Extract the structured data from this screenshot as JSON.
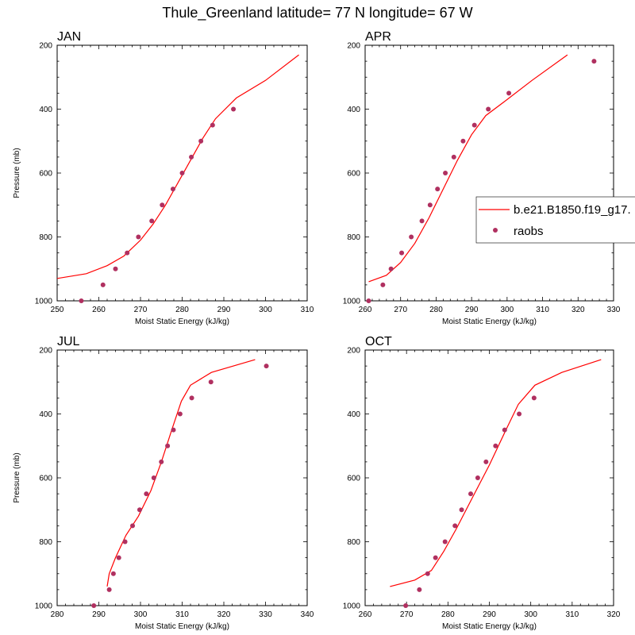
{
  "title": "Thule_Greenland  latitude= 77 N longitude= 67 W",
  "legend": {
    "model_label": "b.e21.B1850.f19_g17.",
    "obs_label": "raobs"
  },
  "colors": {
    "model": "#ff0000",
    "obs": "#b03060"
  },
  "chart_data": [
    {
      "type": "line",
      "panel": "JAN",
      "xlabel": "Moist Static Energy (kJ/kg)",
      "ylabel": "Pressure (mb)",
      "xlim": [
        250,
        310
      ],
      "ylim": [
        1000,
        200
      ],
      "xticks": [
        250,
        260,
        270,
        280,
        290,
        300,
        310
      ],
      "yticks": [
        200,
        400,
        600,
        800,
        1000
      ],
      "series": [
        {
          "name": "b.e21.B1850.f19_g17.",
          "style": "line",
          "x": [
            250,
            257,
            262,
            266,
            270,
            273,
            276,
            279,
            282,
            285,
            288,
            293,
            300,
            308
          ],
          "y": [
            930,
            915,
            890,
            860,
            810,
            760,
            700,
            630,
            560,
            490,
            430,
            365,
            310,
            230
          ]
        },
        {
          "name": "raobs",
          "style": "markers",
          "x": [
            255.8,
            261,
            264,
            266.8,
            269.5,
            272.7,
            275.2,
            277.8,
            280,
            282.2,
            284.5,
            287.3,
            292.3
          ],
          "y": [
            1000,
            950,
            900,
            850,
            800,
            750,
            700,
            650,
            600,
            550,
            500,
            450,
            400
          ]
        }
      ]
    },
    {
      "type": "line",
      "panel": "APR",
      "xlabel": "Moist Static Energy (kJ/kg)",
      "ylabel": "",
      "xlim": [
        260,
        330
      ],
      "ylim": [
        1000,
        200
      ],
      "xticks": [
        260,
        270,
        280,
        290,
        300,
        310,
        320,
        330
      ],
      "yticks": [
        200,
        400,
        600,
        800,
        1000
      ],
      "series": [
        {
          "name": "b.e21.B1850.f19_g17.",
          "style": "line",
          "x": [
            261,
            266,
            270,
            274,
            278,
            282,
            286,
            290,
            294,
            300,
            307,
            317
          ],
          "y": [
            940,
            920,
            880,
            820,
            740,
            650,
            560,
            480,
            420,
            370,
            310,
            230
          ]
        },
        {
          "name": "raobs",
          "style": "markers",
          "x": [
            261,
            265,
            267.3,
            270.3,
            273,
            276,
            278.3,
            280.4,
            282.6,
            285,
            287.6,
            290.8,
            294.7,
            300.5,
            324.5
          ],
          "y": [
            1000,
            950,
            900,
            850,
            800,
            750,
            700,
            650,
            600,
            550,
            500,
            450,
            400,
            350,
            250
          ]
        }
      ]
    },
    {
      "type": "line",
      "panel": "JUL",
      "xlabel": "Moist Static Energy (kJ/kg)",
      "ylabel": "Pressure (mb)",
      "xlim": [
        280,
        340
      ],
      "ylim": [
        1000,
        200
      ],
      "xticks": [
        280,
        290,
        300,
        310,
        320,
        330,
        340
      ],
      "yticks": [
        200,
        400,
        600,
        800,
        1000
      ],
      "series": [
        {
          "name": "b.e21.B1850.f19_g17.",
          "style": "line",
          "x": [
            292,
            292.5,
            294,
            296.5,
            299.5,
            302.5,
            305,
            307.5,
            309.8,
            312,
            317,
            327.5
          ],
          "y": [
            940,
            900,
            850,
            780,
            720,
            640,
            550,
            450,
            360,
            310,
            270,
            230
          ]
        },
        {
          "name": "raobs",
          "style": "markers",
          "x": [
            288.8,
            292.5,
            293.5,
            294.8,
            296.3,
            298.1,
            299.8,
            301.4,
            303.2,
            305,
            306.5,
            307.9,
            309.5,
            312.3,
            316.9,
            330.2
          ],
          "y": [
            1000,
            950,
            900,
            850,
            800,
            750,
            700,
            650,
            600,
            550,
            500,
            450,
            400,
            350,
            300,
            250
          ]
        }
      ]
    },
    {
      "type": "line",
      "panel": "OCT",
      "xlabel": "Moist Static Energy (kJ/kg)",
      "ylabel": "",
      "xlim": [
        260,
        320
      ],
      "ylim": [
        1000,
        200
      ],
      "xticks": [
        260,
        270,
        280,
        290,
        300,
        310,
        320
      ],
      "yticks": [
        200,
        400,
        600,
        800,
        1000
      ],
      "series": [
        {
          "name": "b.e21.B1850.f19_g17.",
          "style": "line",
          "x": [
            266,
            272,
            276,
            279,
            282,
            286,
            290,
            294,
            297,
            301,
            307.5,
            317
          ],
          "y": [
            940,
            920,
            890,
            830,
            760,
            660,
            560,
            450,
            370,
            310,
            270,
            230
          ]
        },
        {
          "name": "raobs",
          "style": "markers",
          "x": [
            269.8,
            273.1,
            275.1,
            277,
            279.3,
            281.7,
            283.3,
            285.5,
            287.2,
            289.2,
            291.5,
            293.7,
            297.2,
            300.8
          ],
          "y": [
            1000,
            950,
            900,
            850,
            800,
            750,
            700,
            650,
            600,
            550,
            500,
            450,
            400,
            350
          ]
        }
      ]
    }
  ]
}
